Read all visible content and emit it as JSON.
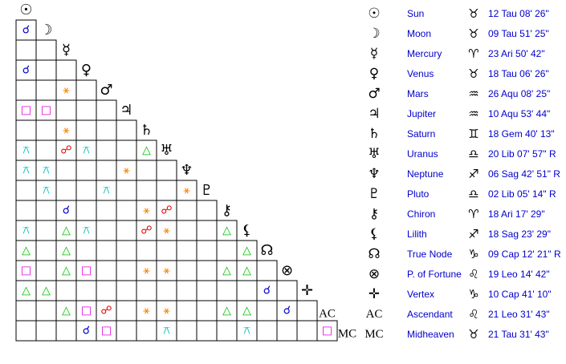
{
  "planets": [
    {
      "glyph": "☉",
      "name": "Sun",
      "sign": "♉",
      "position": "12 Tau 08' 26\""
    },
    {
      "glyph": "☽",
      "name": "Moon",
      "sign": "♉",
      "position": "09 Tau 51' 25\""
    },
    {
      "glyph": "☿",
      "name": "Mercury",
      "sign": "♈",
      "position": "23 Ari 50' 42\""
    },
    {
      "glyph": "♀",
      "name": "Venus",
      "sign": "♉",
      "position": "18 Tau 06' 26\""
    },
    {
      "glyph": "♂",
      "name": "Mars",
      "sign": "♒",
      "position": "26 Aqu 08' 25\""
    },
    {
      "glyph": "♃",
      "name": "Jupiter",
      "sign": "♒",
      "position": "10 Aqu 53' 44\""
    },
    {
      "glyph": "♄",
      "name": "Saturn",
      "sign": "♊",
      "position": "18 Gem 40' 13\""
    },
    {
      "glyph": "♅",
      "name": "Uranus",
      "sign": "♎",
      "position": "20 Lib 07' 57\" R"
    },
    {
      "glyph": "♆",
      "name": "Neptune",
      "sign": "♐",
      "position": "06 Sag 42' 51\" R"
    },
    {
      "glyph": "♇",
      "name": "Pluto",
      "sign": "♎",
      "position": "02 Lib 05' 14\" R"
    },
    {
      "glyph": "⚷",
      "name": "Chiron",
      "sign": "♈",
      "position": "18 Ari 17' 29\""
    },
    {
      "glyph": "⚸",
      "name": "Lilith",
      "sign": "♐",
      "position": "18 Sag 23' 29\""
    },
    {
      "glyph": "☊",
      "name": "True Node",
      "sign": "♑",
      "position": "09 Cap 12' 21\" R"
    },
    {
      "glyph": "⊗",
      "name": "P. of Fortune",
      "sign": "♌",
      "position": "19 Leo 14' 42\""
    },
    {
      "glyph": "✛",
      "name": "Vertex",
      "sign": "♑",
      "position": "10 Cap 41' 10\""
    },
    {
      "glyph": "AC",
      "name": "Ascendant",
      "sign": "♌",
      "position": "21 Leo 31' 43\""
    },
    {
      "glyph": "MC",
      "name": "Midheaven",
      "sign": "♉",
      "position": "21 Tau 31' 43\""
    }
  ],
  "aspect_colors": {
    "☌": "#0000c8",
    "☍": "#e00000",
    "△": "#00c000",
    "□": "#e000e0",
    "⚹": "#f08000",
    "⚻": "#00c0c0"
  },
  "grid": [
    [],
    [
      "☌"
    ],
    [
      null,
      null
    ],
    [
      "☌",
      null,
      null
    ],
    [
      null,
      null,
      "⚹",
      null
    ],
    [
      "□",
      "□",
      null,
      null,
      null
    ],
    [
      null,
      null,
      "⚹",
      null,
      null,
      null
    ],
    [
      "⚻",
      null,
      "☍",
      "⚻",
      null,
      null,
      "△"
    ],
    [
      "⚻",
      "⚻",
      null,
      null,
      null,
      "⚹",
      null,
      null
    ],
    [
      null,
      "⚻",
      null,
      null,
      "⚻",
      null,
      null,
      null,
      "⚹"
    ],
    [
      null,
      null,
      "☌",
      null,
      null,
      null,
      "⚹",
      "☍",
      null,
      null
    ],
    [
      "⚻",
      null,
      "△",
      "⚻",
      null,
      null,
      "☍",
      "⚹",
      null,
      null,
      "△"
    ],
    [
      "△",
      null,
      "△",
      null,
      null,
      null,
      null,
      null,
      null,
      null,
      null,
      "△"
    ],
    [
      "□",
      null,
      "△",
      "□",
      null,
      null,
      "⚹",
      "⚹",
      null,
      null,
      "△",
      "△",
      null
    ],
    [
      "△",
      "△",
      null,
      null,
      null,
      null,
      null,
      null,
      null,
      null,
      null,
      null,
      "☌",
      null
    ],
    [
      null,
      null,
      "△",
      "□",
      "☍",
      null,
      "⚹",
      "⚹",
      null,
      null,
      "△",
      "△",
      null,
      "☌",
      null
    ],
    [
      null,
      null,
      null,
      "☌",
      "□",
      null,
      null,
      "⚻",
      null,
      null,
      null,
      "⚻",
      null,
      null,
      null,
      "□"
    ]
  ]
}
